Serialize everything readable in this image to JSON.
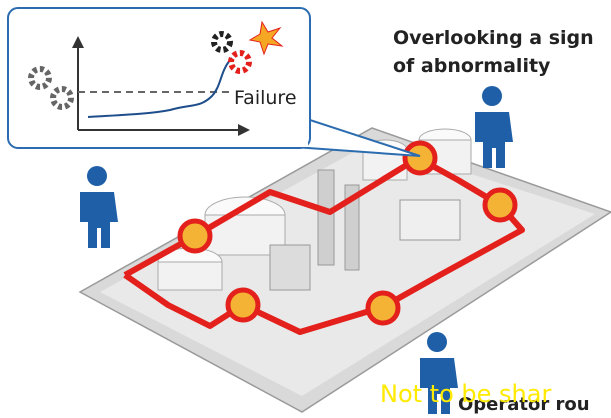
{
  "callout": {
    "label": "Failure"
  },
  "caption": {
    "line1": "Overlooking a sign",
    "line2": "of abnormality"
  },
  "footer": {
    "label": "Operator rou"
  },
  "watermark": {
    "label": "Not to be shar"
  }
}
